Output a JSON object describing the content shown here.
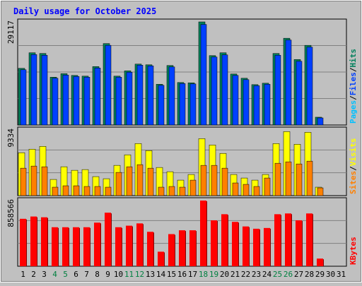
{
  "chart_data": {
    "type": "bar",
    "title": "Daily usage for October 2025",
    "categories": [
      "1",
      "2",
      "3",
      "4",
      "5",
      "6",
      "7",
      "8",
      "9",
      "10",
      "11",
      "12",
      "13",
      "14",
      "15",
      "16",
      "17",
      "18",
      "19",
      "20",
      "21",
      "22",
      "23",
      "24",
      "25",
      "26",
      "27",
      "28",
      "29",
      "30",
      "31"
    ],
    "weekend_days": [
      "4",
      "5",
      "11",
      "12",
      "18",
      "19",
      "25",
      "26"
    ],
    "panels": [
      {
        "id": "hits",
        "ymax_label": "29117",
        "ymax": 29117,
        "legend": [
          "Pages",
          "/",
          "Files",
          "/",
          "Hits"
        ],
        "series": [
          {
            "name": "Hits",
            "values": [
              16000,
              20400,
              20200,
              13500,
              14500,
              14000,
              13800,
              16500,
              23000,
              13800,
              15300,
              17200,
              17000,
              11500,
              16800,
              12000,
              11900,
              29117,
              19600,
              20400,
              14400,
              13200,
              11400,
              11800,
              20200,
              24500,
              18500,
              22500,
              2200,
              0,
              0
            ]
          },
          {
            "name": "Files",
            "values": [
              15600,
              19900,
              19700,
              13200,
              14100,
              13700,
              13500,
              16100,
              22500,
              13500,
              14900,
              16900,
              16700,
              11200,
              16400,
              11700,
              11600,
              28400,
              19200,
              19800,
              14000,
              12800,
              11100,
              11500,
              19700,
              24000,
              18000,
              22000,
              2000,
              0,
              0
            ]
          }
        ]
      },
      {
        "id": "sites",
        "ymax_label": "9334",
        "ymax": 9334,
        "legend": [
          "Sites",
          "/",
          "Visits"
        ],
        "series": [
          {
            "name": "Visits",
            "values": [
              6100,
              6600,
              7000,
              2300,
              4100,
              3600,
              3700,
              2700,
              2400,
              4300,
              5800,
              7400,
              6400,
              4000,
              3400,
              2200,
              3000,
              8100,
              7200,
              6000,
              3000,
              2500,
              2200,
              3000,
              7400,
              9100,
              7300,
              9000,
              1200,
              0,
              0
            ]
          },
          {
            "name": "Sites",
            "values": [
              3900,
              4200,
              4100,
              1200,
              1400,
              1400,
              1300,
              1300,
              1200,
              3300,
              4100,
              4400,
              3900,
              1200,
              1300,
              1200,
              2200,
              4300,
              4300,
              3900,
              1800,
              1600,
              1300,
              2500,
              4600,
              4800,
              4500,
              4900,
              1100,
              0,
              0
            ]
          }
        ]
      },
      {
        "id": "kbytes",
        "ymax_label": "858566",
        "ymax": 858566,
        "legend": [
          "KBytes"
        ],
        "series": [
          {
            "name": "KBytes",
            "values": [
              620000,
              650000,
              640000,
              510000,
              510000,
              510000,
              510000,
              570000,
              700000,
              510000,
              530000,
              560000,
              450000,
              190000,
              420000,
              470000,
              470000,
              858566,
              600000,
              680000,
              580000,
              520000,
              490000,
              500000,
              680000,
              690000,
              600000,
              690000,
              100000,
              0,
              0
            ]
          }
        ]
      }
    ]
  },
  "colors": {
    "background": "#c0c0c0",
    "plot_bg": "#c0c0c0",
    "grid": "#808080",
    "title": "#0000ff",
    "hits": "#00805c",
    "files": "#0040ff",
    "pages": "#00c0ff",
    "visits": "#ffff00",
    "sites": "#ff8000",
    "kbytes": "#ff0000",
    "weekend_label": "#008040",
    "weekday_label": "#000000",
    "legend_sep": "#000000"
  }
}
